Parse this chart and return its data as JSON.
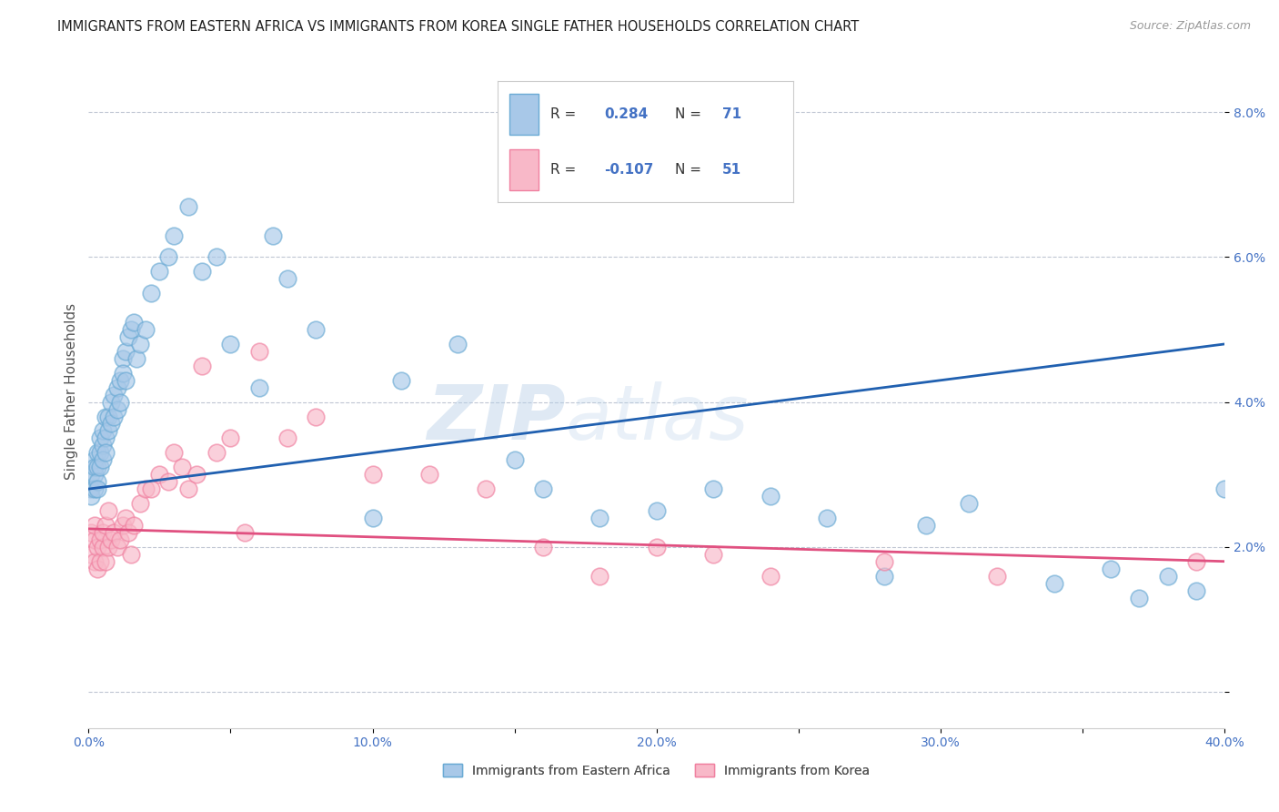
{
  "title": "IMMIGRANTS FROM EASTERN AFRICA VS IMMIGRANTS FROM KOREA SINGLE FATHER HOUSEHOLDS CORRELATION CHART",
  "source": "Source: ZipAtlas.com",
  "ylabel": "Single Father Households",
  "xlim": [
    0.0,
    0.4
  ],
  "ylim": [
    -0.005,
    0.088
  ],
  "xticks": [
    0.0,
    0.05,
    0.1,
    0.15,
    0.2,
    0.25,
    0.3,
    0.35,
    0.4
  ],
  "yticks": [
    0.0,
    0.02,
    0.04,
    0.06,
    0.08
  ],
  "ytick_labels": [
    "",
    "2.0%",
    "4.0%",
    "6.0%",
    "8.0%"
  ],
  "xtick_labels": [
    "0.0%",
    "",
    "10.0%",
    "",
    "20.0%",
    "",
    "30.0%",
    "",
    "40.0%"
  ],
  "series1_color": "#a8c8e8",
  "series1_edge": "#6aaad4",
  "series2_color": "#f8b8c8",
  "series2_edge": "#f080a0",
  "trend1_color": "#2060b0",
  "trend2_color": "#e05080",
  "background_color": "#ffffff",
  "grid_color": "#b0b8c8",
  "title_color": "#222222",
  "axis_color": "#4472c4",
  "watermark_text": "ZIP",
  "watermark_text2": "atlas",
  "trend1_x0": 0.0,
  "trend1_y0": 0.028,
  "trend1_x1": 0.4,
  "trend1_y1": 0.048,
  "trend2_x0": 0.0,
  "trend2_y0": 0.0225,
  "trend2_x1": 0.4,
  "trend2_y1": 0.018,
  "series1_x": [
    0.001,
    0.001,
    0.001,
    0.002,
    0.002,
    0.002,
    0.002,
    0.003,
    0.003,
    0.003,
    0.003,
    0.004,
    0.004,
    0.004,
    0.005,
    0.005,
    0.005,
    0.006,
    0.006,
    0.006,
    0.007,
    0.007,
    0.008,
    0.008,
    0.009,
    0.009,
    0.01,
    0.01,
    0.011,
    0.011,
    0.012,
    0.012,
    0.013,
    0.013,
    0.014,
    0.015,
    0.016,
    0.017,
    0.018,
    0.02,
    0.022,
    0.025,
    0.028,
    0.03,
    0.035,
    0.04,
    0.045,
    0.05,
    0.06,
    0.065,
    0.07,
    0.08,
    0.1,
    0.11,
    0.13,
    0.15,
    0.16,
    0.18,
    0.2,
    0.22,
    0.24,
    0.26,
    0.28,
    0.295,
    0.31,
    0.34,
    0.36,
    0.37,
    0.38,
    0.39,
    0.4
  ],
  "series1_y": [
    0.028,
    0.027,
    0.03,
    0.03,
    0.028,
    0.032,
    0.031,
    0.033,
    0.031,
    0.029,
    0.028,
    0.033,
    0.031,
    0.035,
    0.034,
    0.032,
    0.036,
    0.035,
    0.033,
    0.038,
    0.038,
    0.036,
    0.04,
    0.037,
    0.041,
    0.038,
    0.042,
    0.039,
    0.043,
    0.04,
    0.046,
    0.044,
    0.043,
    0.047,
    0.049,
    0.05,
    0.051,
    0.046,
    0.048,
    0.05,
    0.055,
    0.058,
    0.06,
    0.063,
    0.067,
    0.058,
    0.06,
    0.048,
    0.042,
    0.063,
    0.057,
    0.05,
    0.024,
    0.043,
    0.048,
    0.032,
    0.028,
    0.024,
    0.025,
    0.028,
    0.027,
    0.024,
    0.016,
    0.023,
    0.026,
    0.015,
    0.017,
    0.013,
    0.016,
    0.014,
    0.028
  ],
  "series2_x": [
    0.001,
    0.001,
    0.002,
    0.002,
    0.002,
    0.003,
    0.003,
    0.004,
    0.004,
    0.005,
    0.005,
    0.006,
    0.006,
    0.007,
    0.007,
    0.008,
    0.009,
    0.01,
    0.011,
    0.012,
    0.013,
    0.014,
    0.015,
    0.016,
    0.018,
    0.02,
    0.022,
    0.025,
    0.028,
    0.03,
    0.033,
    0.035,
    0.038,
    0.04,
    0.045,
    0.05,
    0.055,
    0.06,
    0.07,
    0.08,
    0.1,
    0.12,
    0.14,
    0.16,
    0.18,
    0.2,
    0.22,
    0.24,
    0.28,
    0.32,
    0.39
  ],
  "series2_y": [
    0.022,
    0.019,
    0.021,
    0.018,
    0.023,
    0.02,
    0.017,
    0.021,
    0.018,
    0.02,
    0.022,
    0.018,
    0.023,
    0.02,
    0.025,
    0.021,
    0.022,
    0.02,
    0.021,
    0.023,
    0.024,
    0.022,
    0.019,
    0.023,
    0.026,
    0.028,
    0.028,
    0.03,
    0.029,
    0.033,
    0.031,
    0.028,
    0.03,
    0.045,
    0.033,
    0.035,
    0.022,
    0.047,
    0.035,
    0.038,
    0.03,
    0.03,
    0.028,
    0.02,
    0.016,
    0.02,
    0.019,
    0.016,
    0.018,
    0.016,
    0.018
  ]
}
